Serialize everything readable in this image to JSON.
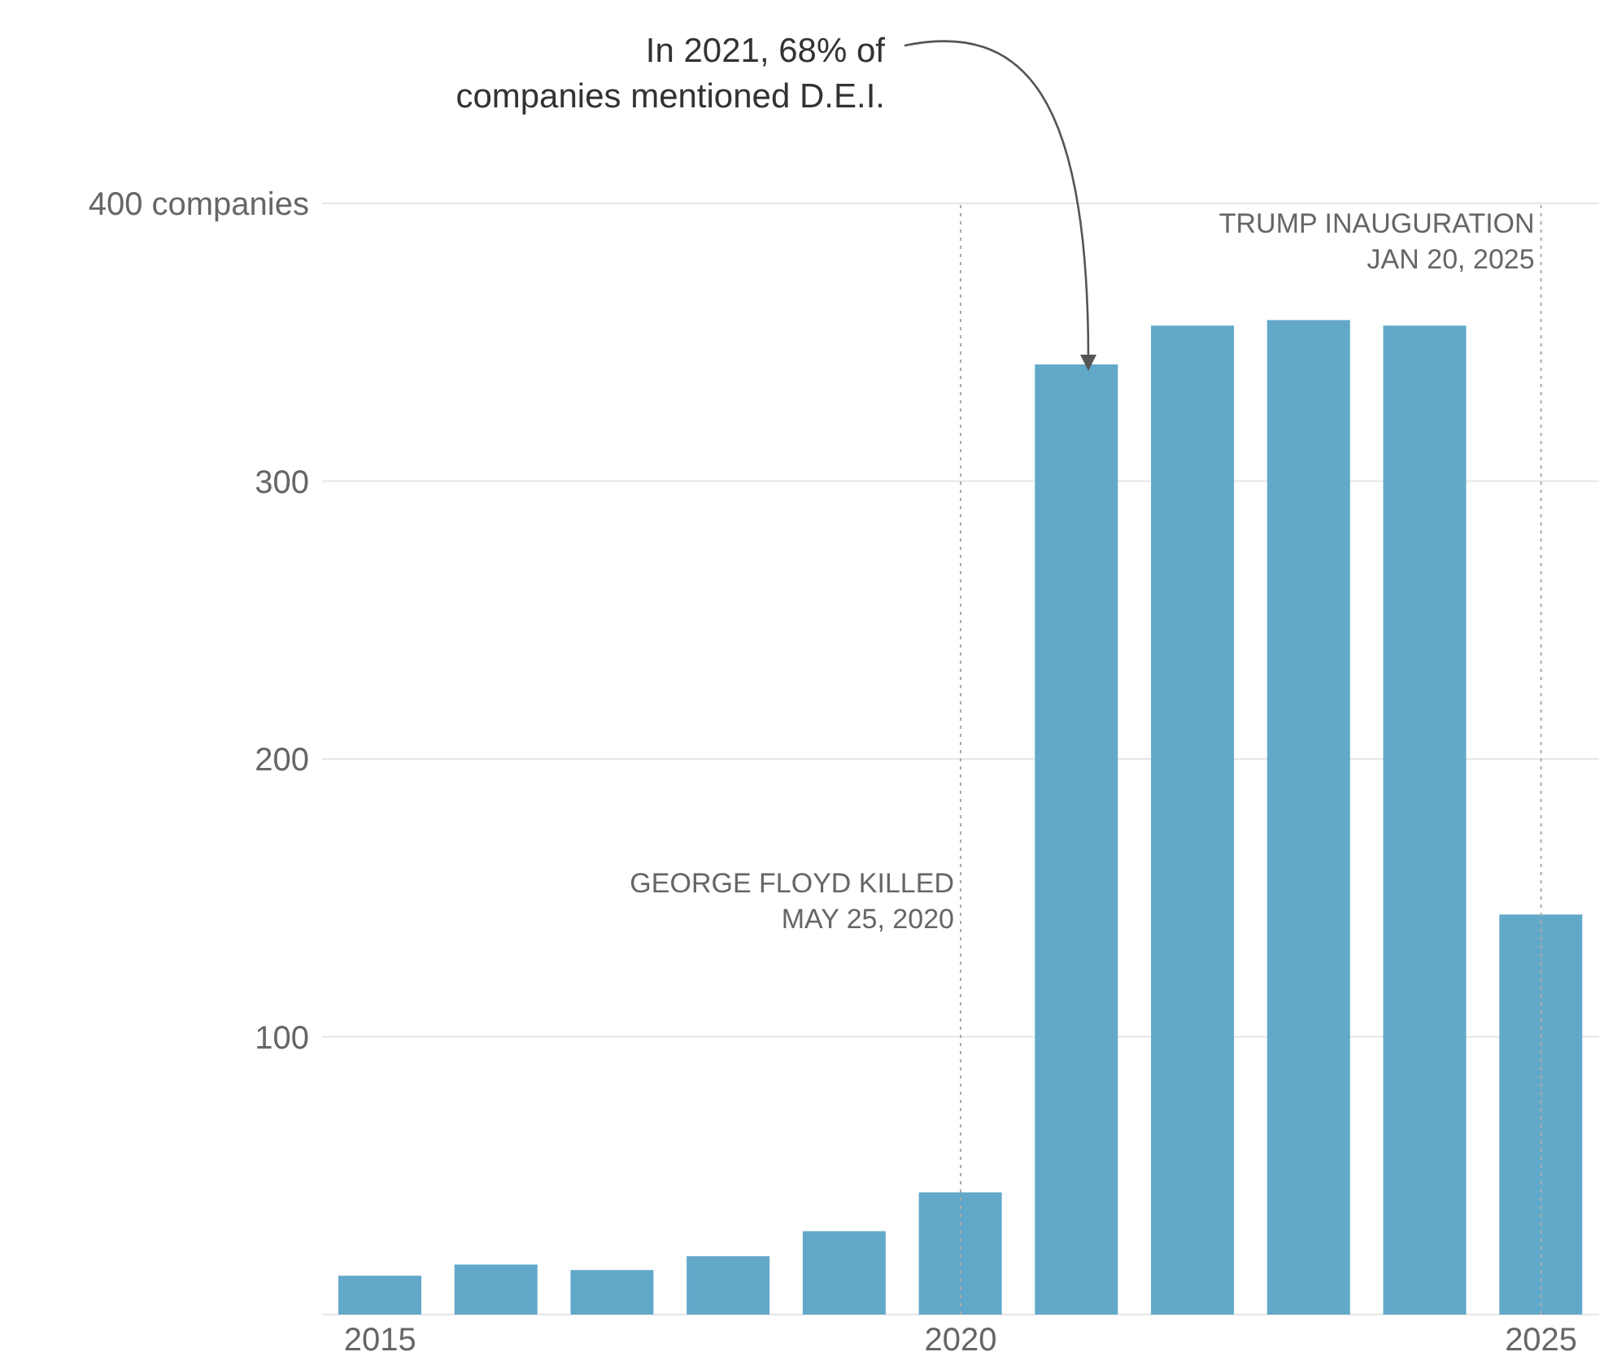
{
  "chart_data": {
    "type": "bar",
    "categories": [
      "2015",
      null,
      null,
      null,
      null,
      "2020",
      null,
      null,
      null,
      null,
      "2025"
    ],
    "values": [
      14,
      18,
      16,
      21,
      30,
      44,
      342,
      356,
      358,
      356,
      144
    ],
    "color": "#62a8c9",
    "ylim": [
      0,
      400
    ],
    "yticks": [
      100,
      200,
      300,
      {
        "value": 400,
        "label": "400 companies"
      }
    ],
    "grid": "y",
    "ref_lines": [
      {
        "axis": "x",
        "value": "2020",
        "label": "GEORGE FLOYD KILLED\nMAY 25, 2020",
        "line_style": "dotted",
        "color": "#aaaaaa"
      },
      {
        "axis": "x",
        "value": "2025",
        "label": "TRUMP INAUGURATION\nJAN 20, 2025",
        "line_style": "dotted",
        "color": "#aaaaaa"
      }
    ],
    "annotations": [
      "In 2021, 68% of\ncompanies mentioned D.E.I."
    ]
  }
}
